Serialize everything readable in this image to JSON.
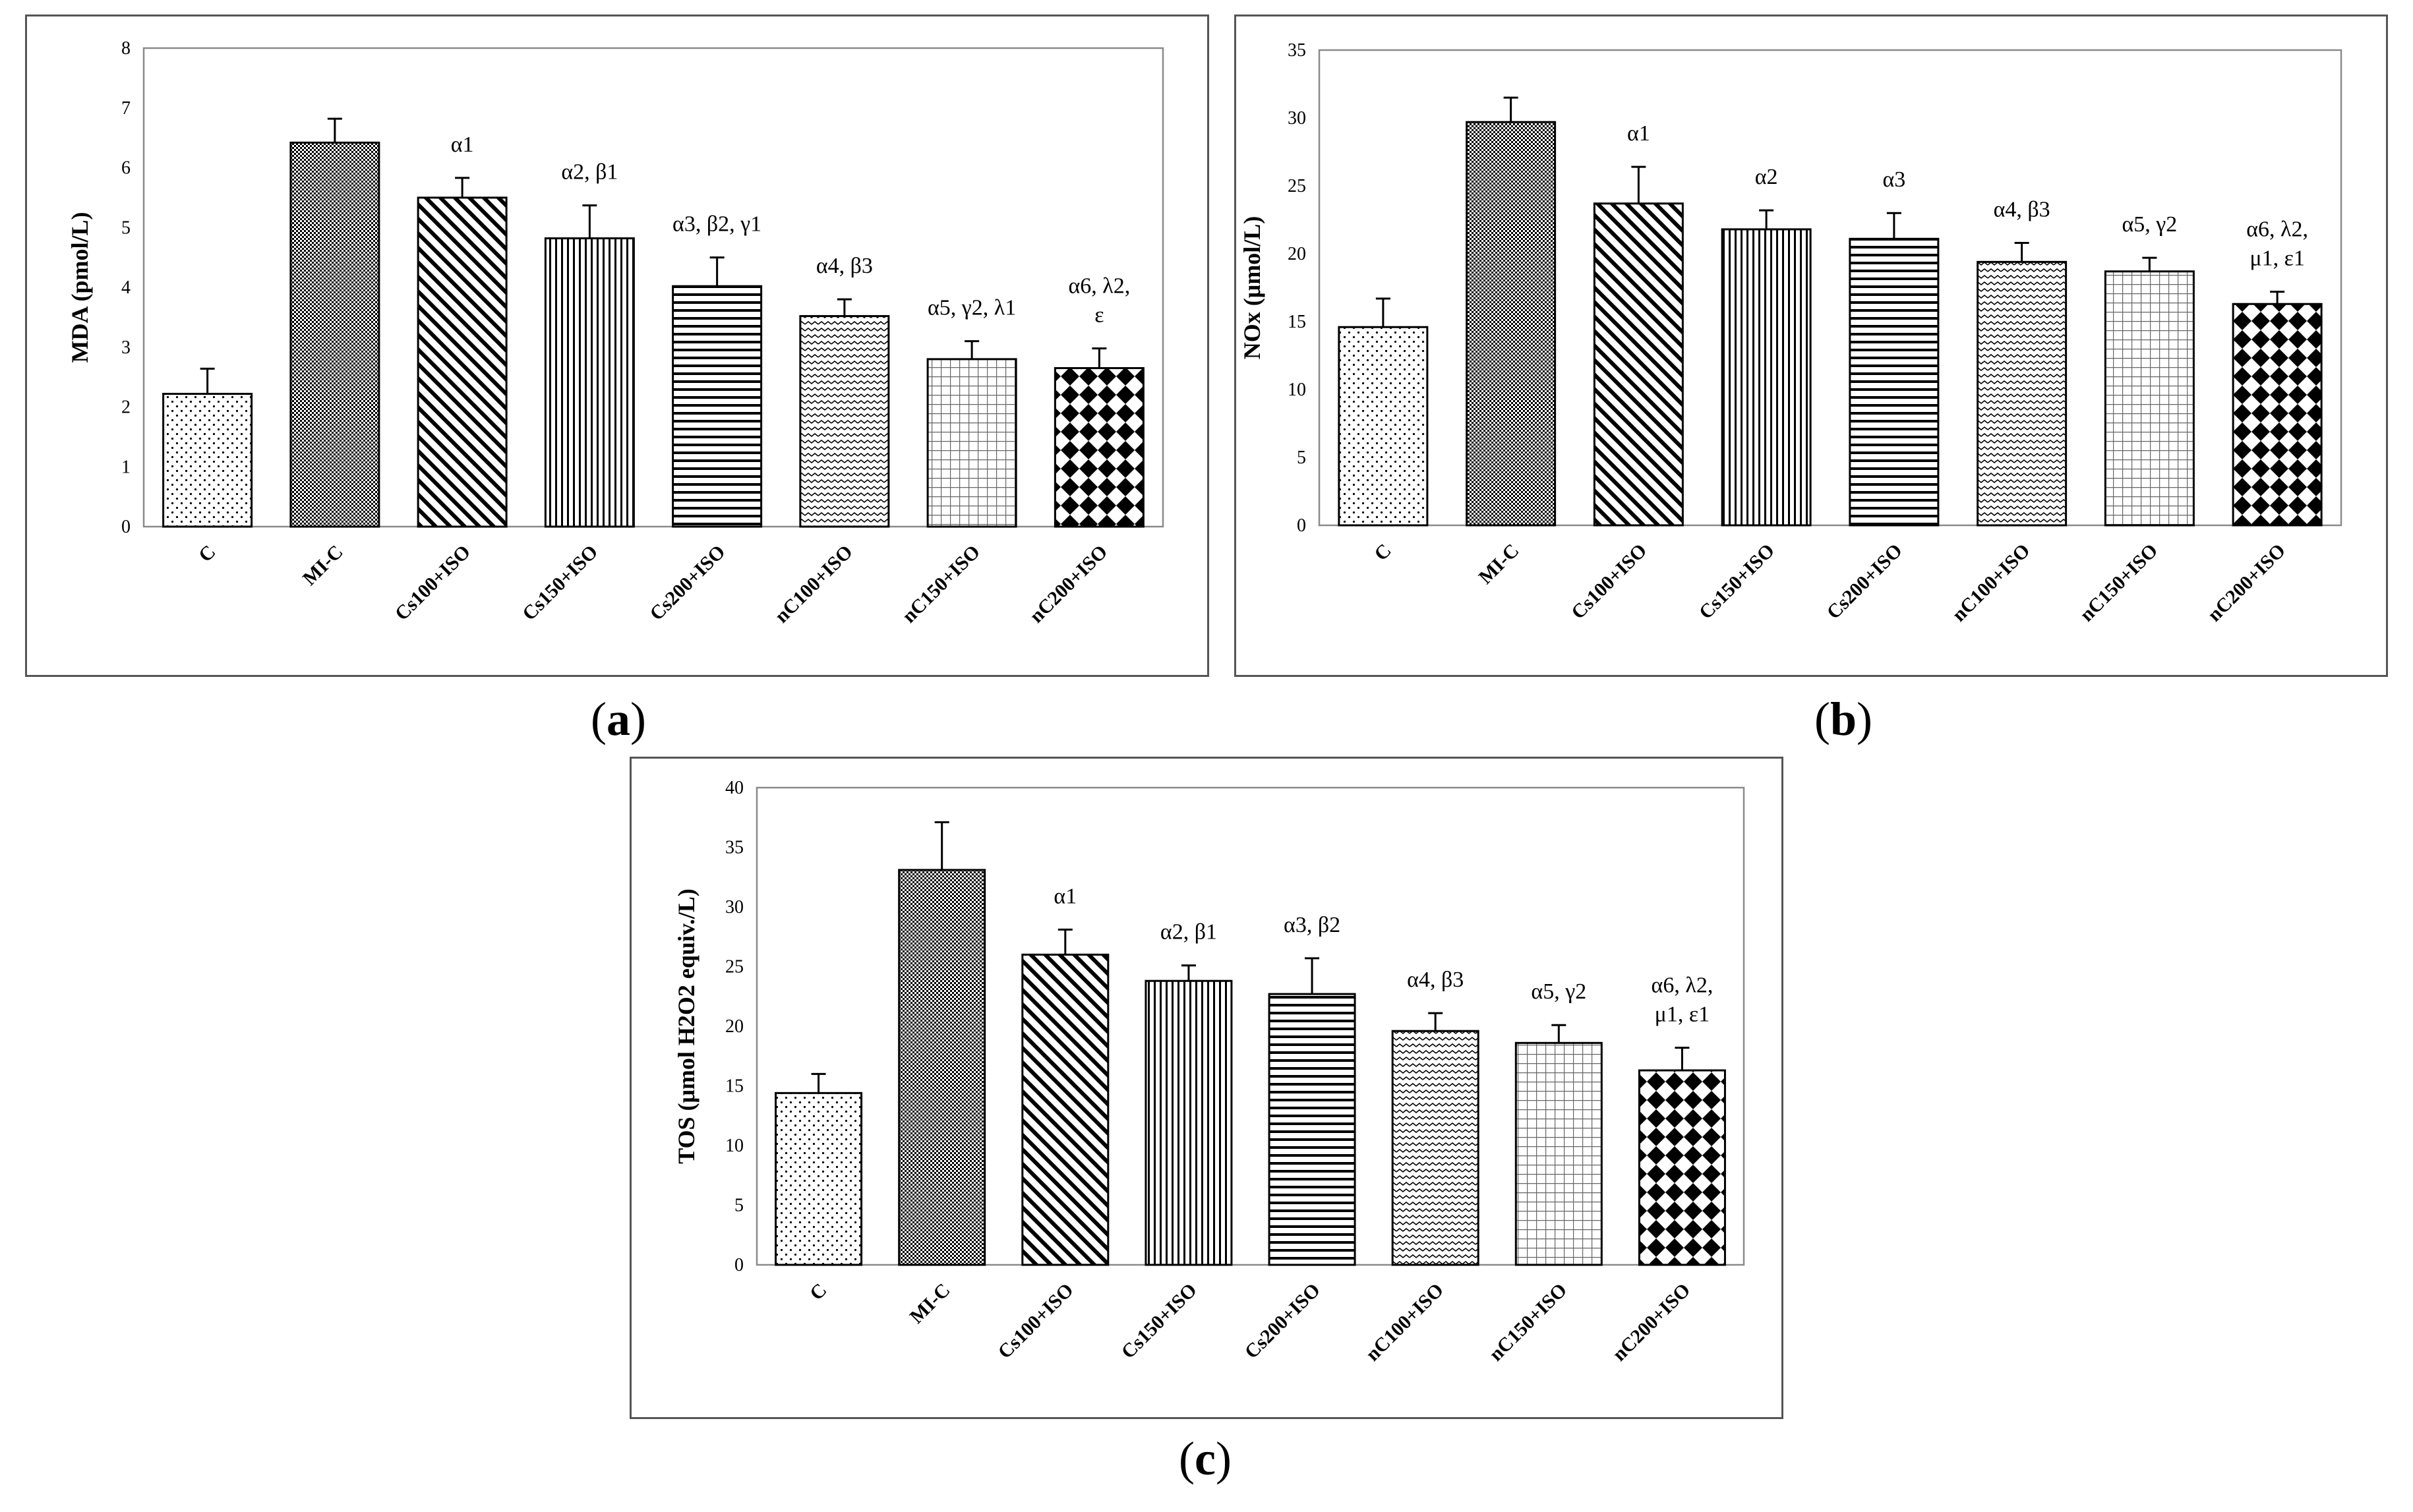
{
  "chart_data": [
    {
      "type": "bar",
      "panel_label": "a",
      "ylabel": "MDA (pmol/L)",
      "xlabel": "",
      "ylim": [
        0,
        8
      ],
      "yticks": [
        "0",
        "1",
        "2",
        "3",
        "4",
        "5",
        "6",
        "7",
        "8"
      ],
      "categories": [
        "C",
        "MI-C",
        "Cs100+ISO",
        "Cs150+ISO",
        "Cs200+ISO",
        "nC100+ISO",
        "nC150+ISO",
        "nC200+ISO"
      ],
      "values": [
        2.22,
        6.42,
        5.5,
        4.82,
        4.02,
        3.52,
        2.8,
        2.65
      ],
      "errors": [
        0.42,
        0.4,
        0.33,
        0.55,
        0.48,
        0.28,
        0.3,
        0.33
      ],
      "annotations": [
        [],
        [],
        [
          "α1"
        ],
        [
          "α2, β1"
        ],
        [
          "α3, β2, γ1"
        ],
        [
          "α4, β3"
        ],
        [
          "α5, γ2, λ1"
        ],
        [
          "α6, λ2,",
          "ε"
        ]
      ],
      "patterns": [
        "dots",
        "dense",
        "diag",
        "vert",
        "horiz",
        "wave",
        "grid",
        "checker"
      ]
    },
    {
      "type": "bar",
      "panel_label": "b",
      "ylabel": "NOx (μmol/L)",
      "xlabel": "",
      "ylim": [
        0,
        35
      ],
      "yticks": [
        "0",
        "5",
        "10",
        "15",
        "20",
        "25",
        "30",
        "35"
      ],
      "categories": [
        "C",
        "MI-C",
        "Cs100+ISO",
        "Cs150+ISO",
        "Cs200+ISO",
        "nC100+ISO",
        "nC150+ISO",
        "nC200+ISO"
      ],
      "values": [
        14.6,
        29.7,
        23.7,
        21.8,
        21.1,
        19.4,
        18.7,
        16.3
      ],
      "errors": [
        2.1,
        1.8,
        2.7,
        1.4,
        1.9,
        1.4,
        1.0,
        0.9
      ],
      "annotations": [
        [],
        [],
        [
          "α1"
        ],
        [
          "α2"
        ],
        [
          "α3"
        ],
        [
          "α4, β3"
        ],
        [
          "α5, γ2"
        ],
        [
          "α6, λ2,",
          "μ1, ε1"
        ]
      ],
      "patterns": [
        "dots",
        "dense",
        "diag",
        "vert",
        "horiz",
        "wave",
        "grid",
        "checker"
      ]
    },
    {
      "type": "bar",
      "panel_label": "c",
      "ylabel": "TOS (μmol H2O2 equiv./L)",
      "xlabel": "",
      "ylim": [
        0,
        40
      ],
      "yticks": [
        "0",
        "5",
        "10",
        "15",
        "20",
        "25",
        "30",
        "35",
        "40"
      ],
      "categories": [
        "C",
        "MI-C",
        "Cs100+ISO",
        "Cs150+ISO",
        "Cs200+ISO",
        "nC100+ISO",
        "nC150+ISO",
        "nC200+ISO"
      ],
      "values": [
        14.4,
        33.1,
        26.0,
        23.8,
        22.7,
        19.6,
        18.6,
        16.3
      ],
      "errors": [
        1.6,
        4.0,
        2.1,
        1.3,
        3.0,
        1.5,
        1.5,
        1.9
      ],
      "annotations": [
        [],
        [],
        [
          "α1"
        ],
        [
          "α2, β1"
        ],
        [
          "α3, β2"
        ],
        [
          "α4, β3"
        ],
        [
          "α5, γ2"
        ],
        [
          "α6, λ2,",
          "μ1, ε1"
        ]
      ],
      "patterns": [
        "dots",
        "dense",
        "diag",
        "vert",
        "horiz",
        "wave",
        "grid",
        "checker"
      ]
    }
  ]
}
